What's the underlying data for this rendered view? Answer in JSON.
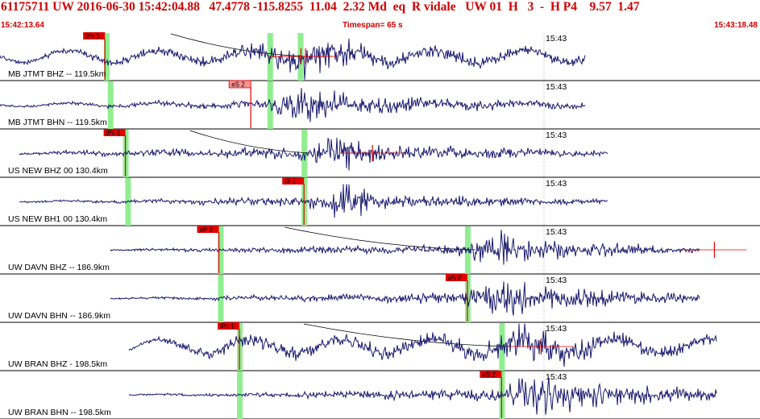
{
  "header": {
    "title": "61175711 UW 2016-06-30 15:42:04.88   47.4778 -115.8255  11.04  2.32 Md  eq  R vidale   UW 01  H   3  -  H P4    9.57  1.47",
    "start_time": "15:42:13.64",
    "timespan": "Timespan=  65 s",
    "end_time": "15:43:18.48"
  },
  "colors": {
    "trace": "#1a1a6e",
    "pick": "#e00000",
    "pick_light": "#ff9090",
    "window": "#90ee90",
    "title": "#d00000"
  },
  "channels": [
    {
      "label": "MB JTMT BHZ -- 119.5km",
      "time_label": "15:43",
      "picks": [
        {
          "label": "iPc 1",
          "style": "solid",
          "t": 0.138
        }
      ],
      "green": [
        0.14,
        0.355,
        0.395
      ],
      "start": 0.0,
      "end": 0.77,
      "env": [
        [
          0.0,
          0.08
        ],
        [
          0.14,
          0.2
        ],
        [
          0.3,
          0.3
        ],
        [
          0.38,
          0.6
        ],
        [
          0.42,
          1.0
        ],
        [
          0.5,
          0.35
        ],
        [
          0.77,
          0.25
        ]
      ],
      "long": 0.35,
      "curve": true,
      "markers": [
        0.396,
        0.402
      ]
    },
    {
      "label": "MB JTMT BHN -- 119.5km",
      "time_label": "15:43",
      "picks": [
        {
          "label": "eS 2",
          "style": "light",
          "t": 0.33
        }
      ],
      "green": [
        0.145,
        0.355
      ],
      "start": 0.0,
      "end": 0.77,
      "env": [
        [
          0.0,
          0.05
        ],
        [
          0.14,
          0.1
        ],
        [
          0.35,
          0.2
        ],
        [
          0.4,
          0.9
        ],
        [
          0.45,
          0.5
        ],
        [
          0.6,
          0.25
        ],
        [
          0.77,
          0.15
        ]
      ],
      "long": 0.1,
      "curve": false,
      "markers": []
    },
    {
      "label": "US NEW BHZ 00 130.4km",
      "time_label": "15:43",
      "picks": [
        {
          "label": "iPc 1",
          "style": "solid",
          "t": 0.165
        }
      ],
      "green": [
        0.165,
        0.4
      ],
      "start": 0.025,
      "end": 0.8,
      "env": [
        [
          0.0,
          0.03
        ],
        [
          0.16,
          0.15
        ],
        [
          0.4,
          0.3
        ],
        [
          0.45,
          1.0
        ],
        [
          0.5,
          0.4
        ],
        [
          0.8,
          0.15
        ]
      ],
      "long": 0.05,
      "curve": true,
      "markers": [
        0.49
      ]
    },
    {
      "label": "US NEW BH1 00 130.4km",
      "time_label": "15:43",
      "picks": [
        {
          "label": "iS 1",
          "style": "solid",
          "t": 0.4
        }
      ],
      "green": [
        0.168,
        0.4
      ],
      "start": 0.025,
      "end": 0.8,
      "env": [
        [
          0.0,
          0.03
        ],
        [
          0.16,
          0.08
        ],
        [
          0.4,
          0.25
        ],
        [
          0.45,
          1.0
        ],
        [
          0.5,
          0.35
        ],
        [
          0.8,
          0.1
        ]
      ],
      "long": 0.03,
      "curve": false,
      "markers": []
    },
    {
      "label": "UW DAVN BHZ -- 186.9km",
      "time_label": "15:43",
      "picks": [
        {
          "label": "eP 2",
          "style": "solid",
          "t": 0.288
        }
      ],
      "green": [
        0.29,
        0.615
      ],
      "start": 0.145,
      "end": 0.92,
      "env": [
        [
          0.14,
          0.03
        ],
        [
          0.29,
          0.12
        ],
        [
          0.6,
          0.25
        ],
        [
          0.66,
          0.9
        ],
        [
          0.72,
          0.45
        ],
        [
          0.92,
          0.15
        ]
      ],
      "long": 0.02,
      "curve": true,
      "markers": [
        0.94
      ]
    },
    {
      "label": "UW DAVN BHN -- 186.9km",
      "time_label": "15:43",
      "picks": [
        {
          "label": "eS 2",
          "style": "solid",
          "t": 0.615
        }
      ],
      "green": [
        0.29,
        0.615
      ],
      "start": 0.145,
      "end": 0.92,
      "env": [
        [
          0.14,
          0.03
        ],
        [
          0.29,
          0.1
        ],
        [
          0.61,
          0.3
        ],
        [
          0.66,
          1.0
        ],
        [
          0.73,
          0.5
        ],
        [
          0.92,
          0.2
        ]
      ],
      "long": 0.02,
      "curve": false,
      "markers": []
    },
    {
      "label": "UW BRAN BHZ - 198.5km",
      "time_label": "15:43",
      "picks": [
        {
          "label": "iPc 1",
          "style": "solid",
          "t": 0.315
        }
      ],
      "green": [
        0.315,
        0.66
      ],
      "start": 0.17,
      "end": 0.943,
      "env": [
        [
          0.17,
          0.05
        ],
        [
          0.31,
          0.35
        ],
        [
          0.5,
          0.35
        ],
        [
          0.66,
          0.5
        ],
        [
          0.7,
          1.0
        ],
        [
          0.8,
          0.4
        ],
        [
          0.943,
          0.25
        ]
      ],
      "long": 0.4,
      "curve": true,
      "markers": [
        0.712
      ]
    },
    {
      "label": "UW BRAN BHN -- 198.5km",
      "time_label": "15:43",
      "picks": [
        {
          "label": "eS 2",
          "style": "solid",
          "t": 0.66
        }
      ],
      "green": [
        0.315,
        0.66
      ],
      "start": 0.17,
      "end": 0.943,
      "env": [
        [
          0.17,
          0.03
        ],
        [
          0.31,
          0.1
        ],
        [
          0.66,
          0.3
        ],
        [
          0.7,
          1.0
        ],
        [
          0.8,
          0.5
        ],
        [
          0.943,
          0.3
        ]
      ],
      "long": 0.03,
      "curve": false,
      "markers": []
    }
  ]
}
